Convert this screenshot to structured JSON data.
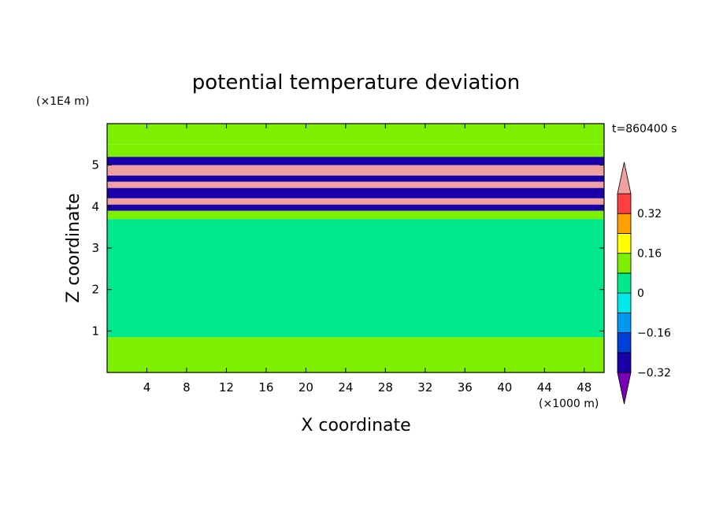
{
  "chart_data": {
    "type": "heatmap",
    "title": "potential temperature deviation",
    "xlabel": "X coordinate",
    "ylabel": "Z coordinate",
    "x_unit": "(×1000 m)",
    "y_unit": "(×1E4 m)",
    "time_label": "t=860400 s",
    "xlim": [
      0,
      50
    ],
    "ylim": [
      0,
      6
    ],
    "x_ticks": [
      4,
      8,
      12,
      16,
      20,
      24,
      28,
      32,
      36,
      40,
      44,
      48
    ],
    "y_ticks": [
      1,
      2,
      3,
      4,
      5
    ],
    "colorbar": {
      "levels": [
        -0.4,
        -0.32,
        -0.24,
        -0.16,
        -0.08,
        0,
        0.08,
        0.16,
        0.24,
        0.32,
        0.4
      ],
      "labeled_ticks": [
        0.32,
        0.16,
        0,
        -0.16,
        -0.32
      ],
      "colors": [
        "#7a00b8",
        "#1a00a8",
        "#0040d8",
        "#0098f0",
        "#00e8e8",
        "#00e88c",
        "#7cf000",
        "#ffff00",
        "#ffa000",
        "#ff4040",
        "#f0a0a0"
      ]
    },
    "bands": [
      {
        "z": [
          0.0,
          0.75
        ],
        "level": 0.02
      },
      {
        "z": [
          0.75,
          0.85
        ],
        "level": 0.05
      },
      {
        "z": [
          0.85,
          3.7
        ],
        "level": -0.03
      },
      {
        "z": [
          3.7,
          3.9
        ],
        "level": 0.05
      },
      {
        "z": [
          3.9,
          4.05
        ],
        "level": -0.4
      },
      {
        "z": [
          4.05,
          4.2
        ],
        "level": 0.4
      },
      {
        "z": [
          4.2,
          4.45
        ],
        "level": -0.4
      },
      {
        "z": [
          4.45,
          4.6
        ],
        "level": 0.4
      },
      {
        "z": [
          4.6,
          4.75
        ],
        "level": -0.4
      },
      {
        "z": [
          4.75,
          5.0
        ],
        "level": 0.4
      },
      {
        "z": [
          5.0,
          5.2
        ],
        "level": -0.4
      },
      {
        "z": [
          5.2,
          5.5
        ],
        "level": 0.05
      },
      {
        "z": [
          5.5,
          6.0
        ],
        "level": 0.06
      }
    ]
  }
}
